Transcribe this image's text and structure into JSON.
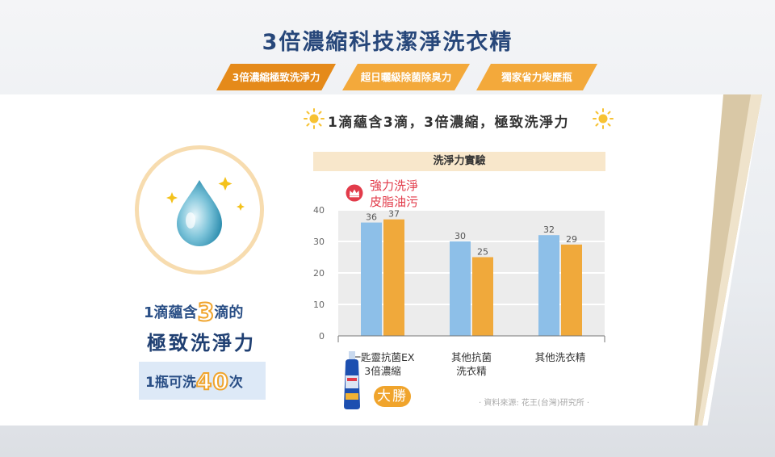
{
  "title": "3倍濃縮科技潔淨洗衣精",
  "tabs": [
    {
      "label": "3倍濃縮極致洗淨力",
      "active": true
    },
    {
      "label": "超日曬級除菌除臭力",
      "active": false
    },
    {
      "label": "獨家省力柴歷瓶",
      "active": false
    }
  ],
  "headline": "1滴蘊含3滴，3倍濃縮，極致洗淨力",
  "left_panel": {
    "line1_prefix": "1滴蘊含",
    "line1_number": "3",
    "line1_suffix": "滴的",
    "line2": "極致洗淨力",
    "line3_prefix": "1瓶可洗",
    "line3_number": "40",
    "line3_suffix": "次"
  },
  "winner_note": {
    "line1": "強力洗淨",
    "line2": "皮脂油污"
  },
  "win_badge": "大勝",
  "source": "· 資料來源: 花王(台灣)研究所 ·",
  "colors": {
    "series_blue": "#8dbfe8",
    "series_orange": "#f0a93b",
    "accent_orange": "#e58a1a",
    "navy": "#27477a",
    "red": "#e23b4a"
  },
  "chart_data": {
    "type": "bar",
    "title": "洗淨力實驗",
    "categories": [
      "一匙靈抗菌EX\n3倍濃縮",
      "其他抗菌\n洗衣精",
      "其他洗衣精"
    ],
    "series": [
      {
        "values": [
          36,
          30,
          32
        ],
        "color": "#8dbfe8"
      },
      {
        "values": [
          37,
          25,
          29
        ],
        "color": "#f0a93b"
      }
    ],
    "ylim": [
      0,
      40
    ],
    "yticks": [
      0,
      10,
      20,
      30,
      40
    ],
    "grid": true
  }
}
